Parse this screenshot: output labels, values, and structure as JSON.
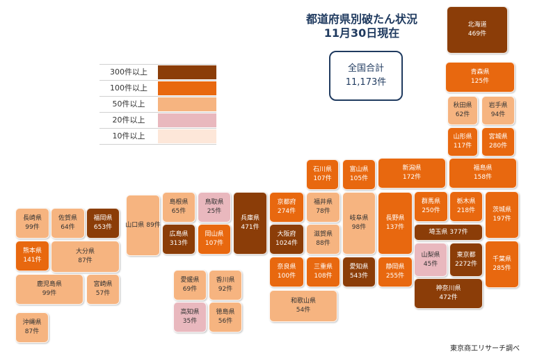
{
  "title": {
    "line1": "都道府県別破たん状況",
    "line2": "11月30日現在"
  },
  "total": {
    "label": "全国合計",
    "value": "11,173件"
  },
  "legend": [
    {
      "label": "300件以上",
      "color": "#8b3d08"
    },
    {
      "label": "100件以上",
      "color": "#e8680f"
    },
    {
      "label": "50件以上",
      "color": "#f6b480"
    },
    {
      "label": "20件以上",
      "color": "#e9b8be"
    },
    {
      "label": "10件以上",
      "color": "#fde7d9"
    }
  ],
  "prefectures": {
    "hokkaido": {
      "name": "北海道",
      "count": "469件"
    },
    "aomori": {
      "name": "青森県",
      "count": "125件"
    },
    "akita": {
      "name": "秋田県",
      "count": "62件"
    },
    "iwate": {
      "name": "岩手県",
      "count": "94件"
    },
    "yamagata": {
      "name": "山形県",
      "count": "117件"
    },
    "miyagi": {
      "name": "宮城県",
      "count": "280件"
    },
    "fukushima": {
      "name": "福島県",
      "count": "158件"
    },
    "niigata": {
      "name": "新潟県",
      "count": "172件"
    },
    "ishikawa": {
      "name": "石川県",
      "count": "107件"
    },
    "toyama": {
      "name": "富山県",
      "count": "105件"
    },
    "gunma": {
      "name": "群馬県",
      "count": "250件"
    },
    "tochigi": {
      "name": "栃木県",
      "count": "218件"
    },
    "ibaraki": {
      "name": "茨城県",
      "count": "197件"
    },
    "saitama": {
      "name": "埼玉県",
      "count": "377件"
    },
    "nagano": {
      "name": "長野県",
      "count": "137件"
    },
    "yamanashi": {
      "name": "山梨県",
      "count": "45件"
    },
    "tokyo": {
      "name": "東京都",
      "count": "2272件"
    },
    "chiba": {
      "name": "千葉県",
      "count": "285件"
    },
    "kanagawa": {
      "name": "神奈川県",
      "count": "472件"
    },
    "shizuoka": {
      "name": "静岡県",
      "count": "255件"
    },
    "aichi": {
      "name": "愛知県",
      "count": "543件"
    },
    "gifu": {
      "name": "岐阜県",
      "count": "98件"
    },
    "fukui": {
      "name": "福井県",
      "count": "78件"
    },
    "shiga": {
      "name": "滋賀県",
      "count": "88件"
    },
    "mie": {
      "name": "三重県",
      "count": "108件"
    },
    "kyoto": {
      "name": "京都府",
      "count": "274件"
    },
    "osaka": {
      "name": "大阪府",
      "count": "1024件"
    },
    "nara": {
      "name": "奈良県",
      "count": "100件"
    },
    "wakayama": {
      "name": "和歌山県",
      "count": "54件"
    },
    "hyogo": {
      "name": "兵庫県",
      "count": "471件"
    },
    "shimane": {
      "name": "島根県",
      "count": "65件"
    },
    "tottori": {
      "name": "鳥取県",
      "count": "25件"
    },
    "hiroshima": {
      "name": "広島県",
      "count": "313件"
    },
    "okayama": {
      "name": "岡山県",
      "count": "107件"
    },
    "yamaguchi": {
      "name": "山口県",
      "count": "89件"
    },
    "ehime": {
      "name": "愛媛県",
      "count": "69件"
    },
    "kagawa": {
      "name": "香川県",
      "count": "92件"
    },
    "kochi": {
      "name": "高知県",
      "count": "35件"
    },
    "tokushima": {
      "name": "徳島県",
      "count": "56件"
    },
    "nagasaki": {
      "name": "長崎県",
      "count": "99件"
    },
    "saga": {
      "name": "佐賀県",
      "count": "64件"
    },
    "fukuoka": {
      "name": "福岡県",
      "count": "653件"
    },
    "kumamoto": {
      "name": "熊本県",
      "count": "141件"
    },
    "oita": {
      "name": "大分県",
      "count": "87件"
    },
    "kagoshima": {
      "name": "鹿児島県",
      "count": "99件"
    },
    "miyazaki": {
      "name": "宮崎県",
      "count": "57件"
    },
    "okinawa": {
      "name": "沖縄県",
      "count": "87件"
    }
  },
  "source": "東京商工リサーチ調べ"
}
